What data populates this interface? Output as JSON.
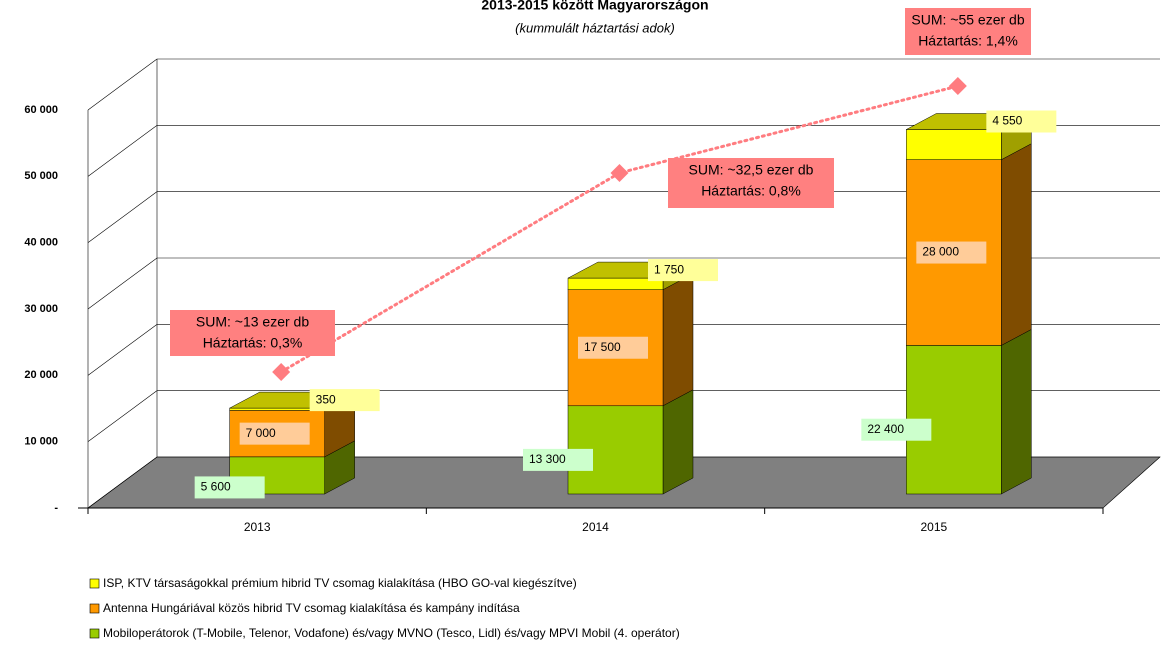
{
  "chart_data": {
    "type": "bar3d_stacked",
    "title": "2013-2015 között Magyarországon",
    "subtitle": "(kummulált háztartási adok)",
    "categories": [
      "2013",
      "2014",
      "2015"
    ],
    "series": [
      {
        "name": "Mobiloperátorok (T-Mobile, Telenor, Vodafone) és/vagy MVNO (Tesco, Lidl) és/vagy MPVI Mobil (4. operátor)",
        "color": "#99cc00",
        "side": "#4f6600",
        "label_bg": "#ccffcc",
        "values": [
          5600,
          13300,
          22400
        ],
        "value_labels": [
          "5 600",
          "13 300",
          "22 400"
        ]
      },
      {
        "name": "Antenna Hungáriával közös hibrid TV csomag kialakítása és kampány indítása",
        "color": "#ff9900",
        "side": "#7f4c00",
        "label_bg": "#ffcc99",
        "values": [
          7000,
          17500,
          28000
        ],
        "value_labels": [
          "7 000",
          "17 500",
          "28 000"
        ]
      },
      {
        "name": "ISP, KTV társaságokkal prémium hibrid TV csomag kialakítása (HBO GO-val kiegészítve)",
        "color": "#ffff00",
        "side": "#a0a000",
        "label_bg": "#ffff99",
        "values": [
          350,
          1750,
          4550
        ],
        "value_labels": [
          "350",
          "1 750",
          "4 550"
        ]
      }
    ],
    "line": {
      "color": "#ff7c80",
      "values": [
        18400,
        48400,
        61500
      ]
    },
    "annotations": [
      {
        "lines": [
          "SUM: ~13 ezer db",
          "Háztartás: 0,3%"
        ]
      },
      {
        "lines": [
          "SUM: ~32,5 ezer db",
          "Háztartás: 0,8%"
        ]
      },
      {
        "lines": [
          "SUM: ~55 ezer db",
          "Háztartás: 1,4%"
        ]
      }
    ],
    "ylim": [
      0,
      60000
    ],
    "yticks": [
      {
        "value": 0,
        "label": "-"
      },
      {
        "value": 10000,
        "label": "10 000"
      },
      {
        "value": 20000,
        "label": "20 000"
      },
      {
        "value": 30000,
        "label": "30 000"
      },
      {
        "value": 40000,
        "label": "40 000"
      },
      {
        "value": 50000,
        "label": "50 000"
      },
      {
        "value": 60000,
        "label": "60 000"
      }
    ],
    "grid": true
  }
}
